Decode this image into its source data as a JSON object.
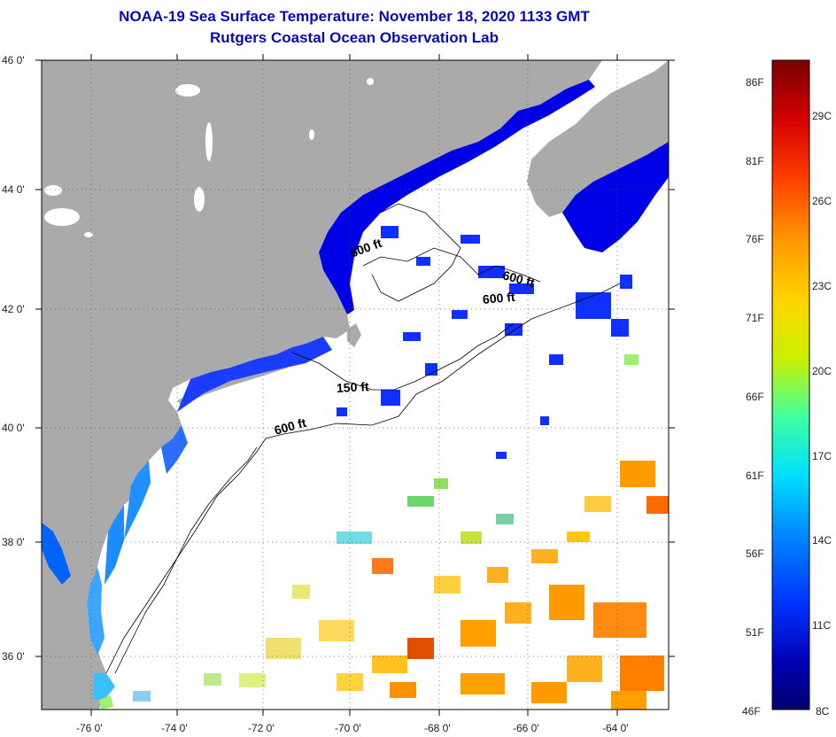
{
  "title_line1": "NOAA-19 Sea Surface Temperature:  November 18, 2020 1133 GMT",
  "title_line2": "Rutgers Coastal Ocean Observation Lab",
  "map": {
    "lat_labels": [
      "46 0'",
      "44 0'",
      "42 0'",
      "40 0'",
      "38 0'",
      "36 0'"
    ],
    "lon_labels": [
      "-76 0'",
      "-74 0'",
      "-72 0'",
      "-70 0'",
      "-68 0'",
      "-66 0'",
      "-64 0'"
    ],
    "land_color": "#aaaaaa",
    "cloud_color": "#ffffff",
    "isobath_labels": [
      "600 ft",
      "600 ft",
      "600 ft",
      "150 ft",
      "600 ft"
    ]
  },
  "colorbar": {
    "fahrenheit_labels": [
      "86F",
      "81F",
      "76F",
      "71F",
      "66F",
      "61F",
      "56F",
      "51F",
      "46F"
    ],
    "celsius_labels": [
      "29C",
      "26C",
      "23C",
      "20C",
      "17C",
      "14C",
      "11C",
      "8C"
    ],
    "colors_top_to_bottom": [
      "#7a0000",
      "#d40000",
      "#ff3c00",
      "#ff9a00",
      "#ffd400",
      "#c8f000",
      "#40ffa0",
      "#00e0ff",
      "#0088ff",
      "#0030ff",
      "#0000b0",
      "#000070"
    ]
  }
}
